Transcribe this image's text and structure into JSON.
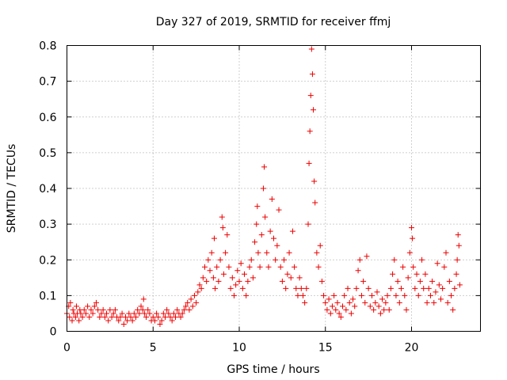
{
  "chart_data": {
    "type": "scatter",
    "title": "Day 327 of 2019, SRMTID for receiver ffmj",
    "xlabel": "GPS time / hours",
    "ylabel": "SRMTID / TECUs",
    "xlim": [
      0,
      24
    ],
    "ylim": [
      0,
      0.8
    ],
    "xticks": [
      0,
      5,
      10,
      15,
      20
    ],
    "xtick_labels": [
      "0",
      "5",
      "10",
      "15",
      "20"
    ],
    "yticks": [
      0,
      0.1,
      0.2,
      0.3,
      0.4,
      0.5,
      0.6,
      0.7,
      0.8
    ],
    "ytick_labels": [
      "0",
      "0.1",
      "0.2",
      "0.3",
      "0.4",
      "0.5",
      "0.6",
      "0.7",
      "0.8"
    ],
    "grid": true,
    "marker": "+",
    "color": "#ee0000",
    "series": [
      {
        "name": "SRMTID",
        "points": [
          [
            0.0,
            0.05
          ],
          [
            0.1,
            0.07
          ],
          [
            0.15,
            0.04
          ],
          [
            0.2,
            0.08
          ],
          [
            0.3,
            0.03
          ],
          [
            0.35,
            0.06
          ],
          [
            0.4,
            0.05
          ],
          [
            0.5,
            0.04
          ],
          [
            0.55,
            0.07
          ],
          [
            0.6,
            0.05
          ],
          [
            0.7,
            0.03
          ],
          [
            0.75,
            0.06
          ],
          [
            0.8,
            0.05
          ],
          [
            0.9,
            0.04
          ],
          [
            1.0,
            0.06
          ],
          [
            1.1,
            0.05
          ],
          [
            1.2,
            0.07
          ],
          [
            1.3,
            0.04
          ],
          [
            1.4,
            0.06
          ],
          [
            1.5,
            0.05
          ],
          [
            1.6,
            0.07
          ],
          [
            1.7,
            0.08
          ],
          [
            1.8,
            0.06
          ],
          [
            1.9,
            0.04
          ],
          [
            2.0,
            0.05
          ],
          [
            2.1,
            0.06
          ],
          [
            2.2,
            0.04
          ],
          [
            2.3,
            0.05
          ],
          [
            2.4,
            0.03
          ],
          [
            2.5,
            0.06
          ],
          [
            2.6,
            0.04
          ],
          [
            2.7,
            0.05
          ],
          [
            2.8,
            0.06
          ],
          [
            2.9,
            0.04
          ],
          [
            3.0,
            0.03
          ],
          [
            3.1,
            0.04
          ],
          [
            3.2,
            0.05
          ],
          [
            3.3,
            0.02
          ],
          [
            3.4,
            0.04
          ],
          [
            3.5,
            0.03
          ],
          [
            3.6,
            0.05
          ],
          [
            3.7,
            0.04
          ],
          [
            3.8,
            0.03
          ],
          [
            3.9,
            0.05
          ],
          [
            4.0,
            0.04
          ],
          [
            4.1,
            0.06
          ],
          [
            4.2,
            0.05
          ],
          [
            4.3,
            0.07
          ],
          [
            4.4,
            0.06
          ],
          [
            4.45,
            0.09
          ],
          [
            4.5,
            0.05
          ],
          [
            4.6,
            0.04
          ],
          [
            4.7,
            0.06
          ],
          [
            4.8,
            0.05
          ],
          [
            4.9,
            0.03
          ],
          [
            5.0,
            0.04
          ],
          [
            5.1,
            0.03
          ],
          [
            5.2,
            0.05
          ],
          [
            5.3,
            0.04
          ],
          [
            5.4,
            0.02
          ],
          [
            5.5,
            0.03
          ],
          [
            5.6,
            0.05
          ],
          [
            5.7,
            0.04
          ],
          [
            5.8,
            0.06
          ],
          [
            5.9,
            0.05
          ],
          [
            6.0,
            0.04
          ],
          [
            6.1,
            0.03
          ],
          [
            6.2,
            0.05
          ],
          [
            6.3,
            0.04
          ],
          [
            6.4,
            0.06
          ],
          [
            6.5,
            0.05
          ],
          [
            6.6,
            0.04
          ],
          [
            6.7,
            0.05
          ],
          [
            6.8,
            0.06
          ],
          [
            6.9,
            0.07
          ],
          [
            7.0,
            0.08
          ],
          [
            7.1,
            0.06
          ],
          [
            7.2,
            0.09
          ],
          [
            7.3,
            0.07
          ],
          [
            7.4,
            0.1
          ],
          [
            7.5,
            0.08
          ],
          [
            7.6,
            0.11
          ],
          [
            7.7,
            0.13
          ],
          [
            7.8,
            0.12
          ],
          [
            7.9,
            0.15
          ],
          [
            8.0,
            0.18
          ],
          [
            8.1,
            0.14
          ],
          [
            8.2,
            0.2
          ],
          [
            8.3,
            0.17
          ],
          [
            8.4,
            0.22
          ],
          [
            8.5,
            0.15
          ],
          [
            8.55,
            0.26
          ],
          [
            8.6,
            0.12
          ],
          [
            8.7,
            0.18
          ],
          [
            8.8,
            0.14
          ],
          [
            8.9,
            0.2
          ],
          [
            9.0,
            0.32
          ],
          [
            9.05,
            0.29
          ],
          [
            9.1,
            0.16
          ],
          [
            9.2,
            0.22
          ],
          [
            9.3,
            0.27
          ],
          [
            9.4,
            0.18
          ],
          [
            9.5,
            0.12
          ],
          [
            9.6,
            0.15
          ],
          [
            9.7,
            0.1
          ],
          [
            9.8,
            0.13
          ],
          [
            9.9,
            0.17
          ],
          [
            10.0,
            0.14
          ],
          [
            10.1,
            0.19
          ],
          [
            10.2,
            0.12
          ],
          [
            10.3,
            0.16
          ],
          [
            10.4,
            0.1
          ],
          [
            10.5,
            0.14
          ],
          [
            10.6,
            0.18
          ],
          [
            10.7,
            0.2
          ],
          [
            10.8,
            0.15
          ],
          [
            10.9,
            0.25
          ],
          [
            11.0,
            0.3
          ],
          [
            11.05,
            0.35
          ],
          [
            11.1,
            0.22
          ],
          [
            11.2,
            0.18
          ],
          [
            11.3,
            0.27
          ],
          [
            11.4,
            0.4
          ],
          [
            11.45,
            0.46
          ],
          [
            11.5,
            0.32
          ],
          [
            11.6,
            0.22
          ],
          [
            11.7,
            0.18
          ],
          [
            11.8,
            0.28
          ],
          [
            11.9,
            0.37
          ],
          [
            12.0,
            0.26
          ],
          [
            12.1,
            0.2
          ],
          [
            12.2,
            0.24
          ],
          [
            12.3,
            0.34
          ],
          [
            12.4,
            0.18
          ],
          [
            12.5,
            0.14
          ],
          [
            12.6,
            0.2
          ],
          [
            12.7,
            0.12
          ],
          [
            12.8,
            0.16
          ],
          [
            12.9,
            0.22
          ],
          [
            13.0,
            0.15
          ],
          [
            13.1,
            0.28
          ],
          [
            13.2,
            0.18
          ],
          [
            13.3,
            0.12
          ],
          [
            13.4,
            0.1
          ],
          [
            13.5,
            0.15
          ],
          [
            13.6,
            0.12
          ],
          [
            13.7,
            0.1
          ],
          [
            13.8,
            0.08
          ],
          [
            13.9,
            0.12
          ],
          [
            14.0,
            0.3
          ],
          [
            14.05,
            0.47
          ],
          [
            14.1,
            0.56
          ],
          [
            14.15,
            0.66
          ],
          [
            14.2,
            0.79
          ],
          [
            14.25,
            0.72
          ],
          [
            14.3,
            0.62
          ],
          [
            14.35,
            0.42
          ],
          [
            14.4,
            0.36
          ],
          [
            14.5,
            0.22
          ],
          [
            14.6,
            0.18
          ],
          [
            14.7,
            0.24
          ],
          [
            14.8,
            0.14
          ],
          [
            14.9,
            0.1
          ],
          [
            15.0,
            0.08
          ],
          [
            15.1,
            0.06
          ],
          [
            15.2,
            0.09
          ],
          [
            15.3,
            0.05
          ],
          [
            15.4,
            0.07
          ],
          [
            15.5,
            0.1
          ],
          [
            15.6,
            0.06
          ],
          [
            15.7,
            0.08
          ],
          [
            15.8,
            0.05
          ],
          [
            15.9,
            0.04
          ],
          [
            16.0,
            0.07
          ],
          [
            16.1,
            0.1
          ],
          [
            16.2,
            0.06
          ],
          [
            16.3,
            0.12
          ],
          [
            16.4,
            0.08
          ],
          [
            16.5,
            0.05
          ],
          [
            16.6,
            0.09
          ],
          [
            16.7,
            0.07
          ],
          [
            16.8,
            0.12
          ],
          [
            16.9,
            0.17
          ],
          [
            17.0,
            0.2
          ],
          [
            17.1,
            0.1
          ],
          [
            17.2,
            0.14
          ],
          [
            17.3,
            0.08
          ],
          [
            17.4,
            0.21
          ],
          [
            17.5,
            0.12
          ],
          [
            17.6,
            0.07
          ],
          [
            17.7,
            0.1
          ],
          [
            17.8,
            0.06
          ],
          [
            17.9,
            0.08
          ],
          [
            18.0,
            0.11
          ],
          [
            18.1,
            0.07
          ],
          [
            18.2,
            0.05
          ],
          [
            18.3,
            0.09
          ],
          [
            18.4,
            0.06
          ],
          [
            18.5,
            0.08
          ],
          [
            18.6,
            0.1
          ],
          [
            18.7,
            0.06
          ],
          [
            18.8,
            0.12
          ],
          [
            18.9,
            0.16
          ],
          [
            19.0,
            0.2
          ],
          [
            19.1,
            0.1
          ],
          [
            19.2,
            0.14
          ],
          [
            19.3,
            0.08
          ],
          [
            19.4,
            0.12
          ],
          [
            19.5,
            0.18
          ],
          [
            19.6,
            0.1
          ],
          [
            19.7,
            0.06
          ],
          [
            19.8,
            0.15
          ],
          [
            19.9,
            0.22
          ],
          [
            20.0,
            0.29
          ],
          [
            20.05,
            0.26
          ],
          [
            20.1,
            0.18
          ],
          [
            20.2,
            0.12
          ],
          [
            20.3,
            0.16
          ],
          [
            20.4,
            0.1
          ],
          [
            20.5,
            0.14
          ],
          [
            20.6,
            0.2
          ],
          [
            20.7,
            0.12
          ],
          [
            20.8,
            0.16
          ],
          [
            20.9,
            0.08
          ],
          [
            21.0,
            0.12
          ],
          [
            21.1,
            0.1
          ],
          [
            21.2,
            0.14
          ],
          [
            21.3,
            0.08
          ],
          [
            21.4,
            0.11
          ],
          [
            21.5,
            0.19
          ],
          [
            21.6,
            0.13
          ],
          [
            21.7,
            0.09
          ],
          [
            21.8,
            0.12
          ],
          [
            21.9,
            0.18
          ],
          [
            22.0,
            0.22
          ],
          [
            22.1,
            0.08
          ],
          [
            22.2,
            0.14
          ],
          [
            22.3,
            0.1
          ],
          [
            22.4,
            0.06
          ],
          [
            22.5,
            0.12
          ],
          [
            22.6,
            0.16
          ],
          [
            22.65,
            0.2
          ],
          [
            22.7,
            0.27
          ],
          [
            22.75,
            0.24
          ],
          [
            22.8,
            0.13
          ]
        ]
      }
    ]
  }
}
